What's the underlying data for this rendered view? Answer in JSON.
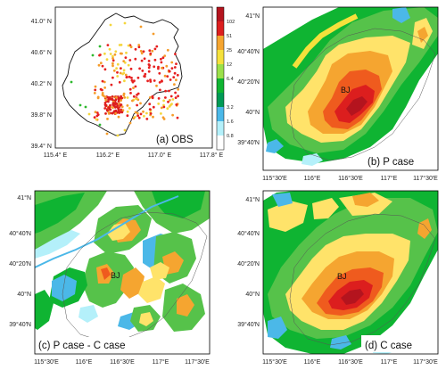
{
  "colors": {
    "scale": [
      "#ffffff",
      "#b4f0fa",
      "#4bb8e8",
      "#0fb432",
      "#56c24a",
      "#9be04a",
      "#f5e13c",
      "#f5a530",
      "#ef5b1e",
      "#dc1e1e",
      "#b4141e"
    ],
    "station_colors": [
      "#2eb82e",
      "#f5d63c",
      "#f59c2a",
      "#e62020",
      "#dc1e1e"
    ]
  },
  "panels": [
    {
      "id": "a",
      "label": "(a) OBS",
      "xticks": [
        "115.4° E",
        "116.2° E",
        "117.0° E",
        "117.8° E"
      ],
      "yticks": [
        "41.0° N",
        "40.6° N",
        "40.2° N",
        "39.8° N",
        "39.4° N"
      ]
    },
    {
      "id": "b",
      "label": "(b) P case",
      "xticks": [
        "115°30′E",
        "116°E",
        "116°30′E",
        "117°E",
        "117°30′E"
      ],
      "yticks": [
        "41°N",
        "40°40′N",
        "40°20′N",
        "40°N",
        "39°40′N"
      ],
      "bj_label": "BJ"
    },
    {
      "id": "c",
      "label": "(c) P case - C case",
      "xticks": [
        "115°30′E",
        "116°E",
        "116°30′E",
        "117°E",
        "117°30′E"
      ],
      "yticks": [
        "41°N",
        "40°40′N",
        "40°20′N",
        "40°N",
        "39°40′N"
      ],
      "bj_label": "BJ"
    },
    {
      "id": "d",
      "label": "(d) C case",
      "xticks": [
        "115°30′E",
        "116°E",
        "116°30′E",
        "117°E",
        "117°30′E"
      ],
      "yticks": [
        "41°N",
        "40°40′N",
        "40°20′N",
        "40°N",
        "39°40′N"
      ],
      "bj_label": "BJ"
    }
  ],
  "colorbar": {
    "labels": [
      "102",
      "51",
      "25",
      "12",
      "6.4",
      "3.2",
      "1.6",
      "0.8"
    ]
  }
}
